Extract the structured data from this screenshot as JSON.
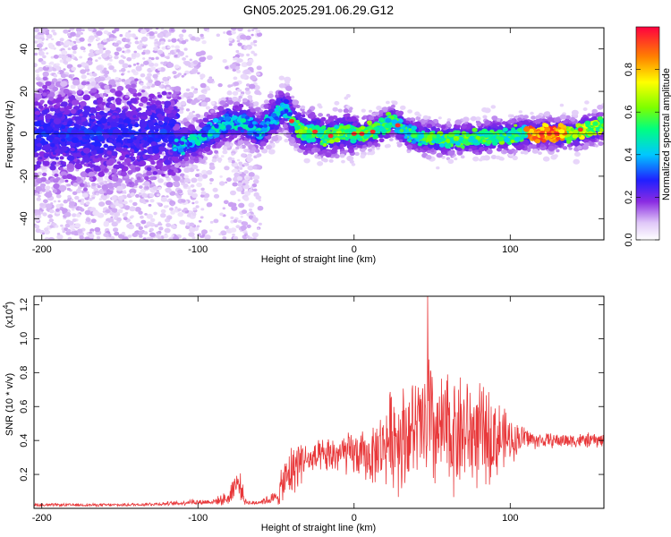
{
  "title": "GN05.2025.291.06.29.G12",
  "chart_data": [
    {
      "type": "heatmap",
      "xlabel": "Height of straight line (km)",
      "ylabel": "Frequency (Hz)",
      "xlim": [
        -205,
        160
      ],
      "ylim": [
        -50,
        50
      ],
      "xticks": [
        -200,
        -100,
        0,
        100
      ],
      "xtick_labels": [
        "-200",
        "-100",
        "0",
        "100"
      ],
      "yticks": [
        -40,
        -20,
        0,
        20,
        40
      ],
      "ytick_labels": [
        "-40",
        "-20",
        "0",
        "20",
        "40"
      ],
      "ridge": {
        "x": [
          -200,
          -180,
          -160,
          -140,
          -120,
          -115,
          -110,
          -105,
          -100,
          -95,
          -90,
          -85,
          -80,
          -75,
          -70,
          -65,
          -60,
          -55,
          -50,
          -45,
          -42,
          -40,
          -38,
          -35,
          -30,
          -25,
          -20,
          -15,
          -10,
          -5,
          0,
          5,
          10,
          15,
          20,
          25,
          30,
          35,
          40,
          45,
          50,
          60,
          70,
          80,
          90,
          100,
          110,
          120,
          130,
          140,
          150,
          160
        ],
        "y": [
          2,
          3,
          1,
          2,
          1,
          -5,
          -5,
          -4,
          -3,
          0,
          1,
          4,
          6,
          5,
          6,
          3,
          0,
          6,
          8,
          13,
          10,
          6,
          5,
          2,
          0,
          1,
          -1,
          -1,
          0,
          1,
          0,
          0,
          1,
          2,
          4,
          6,
          3,
          0,
          -1,
          -2,
          -2,
          -3,
          -2,
          -2,
          -1,
          -1,
          0,
          0,
          0,
          0,
          2,
          4
        ]
      },
      "colorbar": {
        "label": "Normalized spectral amplitude",
        "ticks": [
          0.0,
          0.2,
          0.4,
          0.6,
          0.8
        ],
        "tick_labels": [
          "0.0",
          "0.2",
          "0.4",
          "0.6",
          "0.8"
        ],
        "range": [
          0,
          1
        ]
      }
    },
    {
      "type": "line",
      "xlabel": "Height of straight line (km)",
      "ylabel": "SNR (10 * v/v)",
      "y_multiplier_label": "(x10",
      "y_multiplier_exp": "4",
      "xlim": [
        -205,
        160
      ],
      "ylim": [
        0,
        1.25
      ],
      "xticks": [
        -200,
        -100,
        0,
        100
      ],
      "xtick_labels": [
        "-200",
        "-100",
        "0",
        "100"
      ],
      "yticks": [
        0.2,
        0.4,
        0.6,
        0.8,
        1.0,
        1.2
      ],
      "ytick_labels": [
        "0.2",
        "0.4",
        "0.6",
        "0.8",
        "1.0",
        "1.2"
      ],
      "color": "#e8383a",
      "envelope": {
        "x": [
          -205,
          -150,
          -110,
          -105,
          -100,
          -90,
          -80,
          -77,
          -75,
          -72,
          -70,
          -65,
          -60,
          -50,
          -45,
          -40,
          -35,
          -32,
          -30,
          -20,
          -10,
          0,
          10,
          20,
          25,
          30,
          35,
          40,
          45,
          48,
          50,
          55,
          60,
          70,
          80,
          90,
          100,
          110,
          115,
          120,
          130,
          140,
          150,
          160
        ],
        "mean": [
          0.02,
          0.02,
          0.03,
          0.04,
          0.035,
          0.04,
          0.06,
          0.14,
          0.15,
          0.12,
          0.04,
          0.03,
          0.04,
          0.06,
          0.15,
          0.22,
          0.28,
          0.3,
          0.28,
          0.3,
          0.32,
          0.32,
          0.3,
          0.38,
          0.44,
          0.42,
          0.45,
          0.46,
          0.48,
          0.5,
          0.45,
          0.44,
          0.45,
          0.45,
          0.43,
          0.42,
          0.4,
          0.42,
          0.4,
          0.4,
          0.4,
          0.4,
          0.4,
          0.4
        ],
        "amp": [
          0.01,
          0.01,
          0.015,
          0.02,
          0.02,
          0.02,
          0.05,
          0.1,
          0.1,
          0.08,
          0.02,
          0.015,
          0.02,
          0.05,
          0.15,
          0.18,
          0.18,
          0.12,
          0.1,
          0.12,
          0.14,
          0.15,
          0.18,
          0.26,
          0.35,
          0.38,
          0.34,
          0.35,
          0.4,
          0.7,
          0.42,
          0.38,
          0.42,
          0.4,
          0.35,
          0.3,
          0.15,
          0.08,
          0.06,
          0.05,
          0.05,
          0.05,
          0.05,
          0.05
        ]
      },
      "peak": {
        "x": 47,
        "y": 1.25
      }
    }
  ]
}
